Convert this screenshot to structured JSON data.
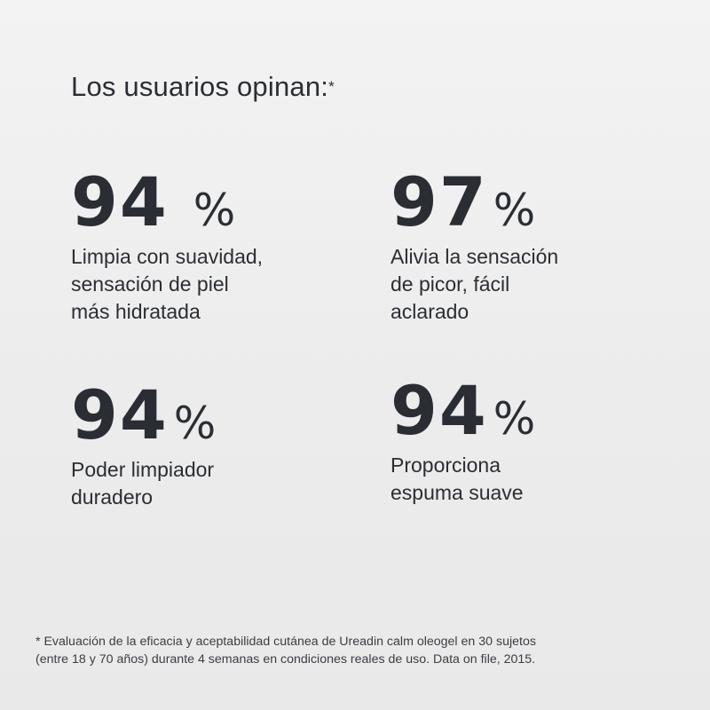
{
  "header": {
    "title": "Los usuarios opinan:",
    "asterisk": "*"
  },
  "stats": [
    {
      "value": "94",
      "unit": "%",
      "lines": [
        "Limpia con suavidad,",
        "sensación de piel",
        "más hidratada"
      ]
    },
    {
      "value": "97",
      "unit": "%",
      "lines": [
        "Alivia la sensación",
        "de picor, fácil",
        "aclarado"
      ]
    },
    {
      "value": "94",
      "unit": "%",
      "lines": [
        "Poder limpiador",
        "duradero"
      ]
    },
    {
      "value": "94",
      "unit": "%",
      "lines": [
        "Proporciona",
        "espuma suave"
      ]
    }
  ],
  "footnote": {
    "lines": [
      "* Evaluación de la eficacia y aceptabilidad cutánea de Ureadin calm oleogel en 30 sujetos",
      "(entre 18 y 70 años) durante 4 semanas en condiciones reales de uso. Data on file, 2015."
    ]
  },
  "colors": {
    "text": "#2a2e34",
    "background": "#efefef"
  }
}
